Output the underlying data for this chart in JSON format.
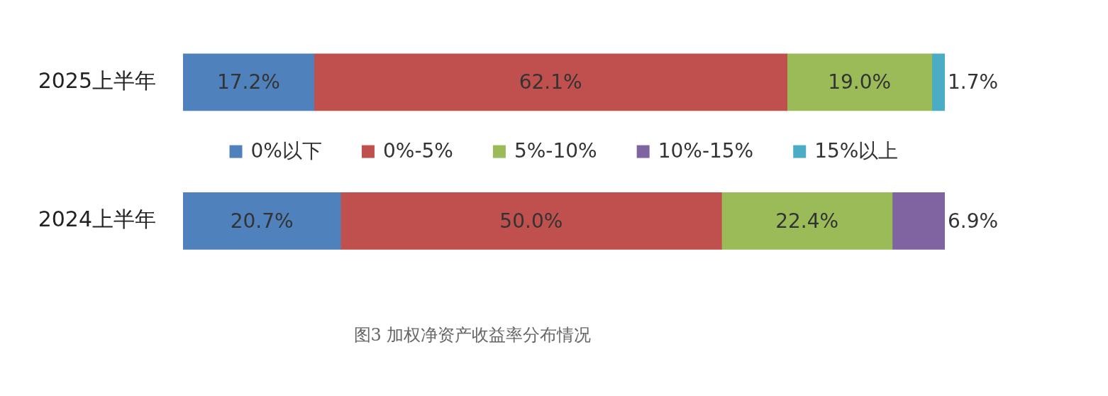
{
  "chart_data": {
    "type": "bar",
    "orientation": "horizontal",
    "stacked": true,
    "title": "图3 加权净资产收益率分布情况",
    "categories": [
      "2025上半年",
      "2024上半年"
    ],
    "series": [
      {
        "name": "0%以下",
        "color": "#4f81bd",
        "values": [
          17.2,
          20.7
        ],
        "value_labels": [
          "17.2%",
          "20.7%"
        ]
      },
      {
        "name": "0%-5%",
        "color": "#c0504d",
        "values": [
          62.1,
          50.0
        ],
        "value_labels": [
          "62.1%",
          "50.0%"
        ]
      },
      {
        "name": "5%-10%",
        "color": "#9bbb59",
        "values": [
          19.0,
          22.4
        ],
        "value_labels": [
          "19.0%",
          "22.4%"
        ]
      },
      {
        "name": "10%-15%",
        "color": "#8064a2",
        "values": [
          null,
          6.9
        ],
        "value_labels": [
          null,
          "6.9%"
        ]
      },
      {
        "name": "15%以上",
        "color": "#4bacc6",
        "values": [
          1.7,
          null
        ],
        "value_labels": [
          "1.7%",
          null
        ]
      }
    ],
    "xlim": [
      0,
      100
    ],
    "tick_labels": "y",
    "legend": "center"
  }
}
